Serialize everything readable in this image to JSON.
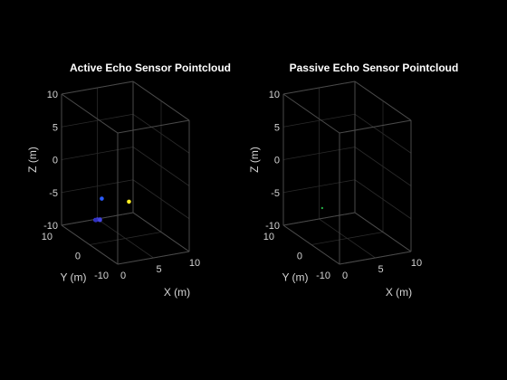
{
  "chart_data": [
    {
      "type": "scatter3d",
      "title": "Active Echo Sensor Pointcloud",
      "xlabel": "X (m)",
      "ylabel": "Y (m)",
      "zlabel": "Z (m)",
      "xlim": [
        0,
        10
      ],
      "ylim": [
        -10,
        10
      ],
      "zlim": [
        -10,
        10
      ],
      "xticks": [
        "0",
        "5",
        "10"
      ],
      "yticks": [
        "-10",
        "0",
        "10"
      ],
      "zticks": [
        "-10",
        "-5",
        "0",
        "5",
        "10"
      ],
      "grid": true,
      "points": [
        {
          "x": 1.7,
          "y": 0,
          "z": -3.3,
          "color": "#2a5cff"
        },
        {
          "x": 5.5,
          "y": 0,
          "z": -4.5,
          "color": "#ffee22"
        },
        {
          "x": 2.4,
          "y": 4.1,
          "z": -7.9,
          "color": "#3a3ad8"
        },
        {
          "x": 2.5,
          "y": 3.6,
          "z": -7.7,
          "color": "#4040dd"
        },
        {
          "x": 2.7,
          "y": 3.2,
          "z": -7.6,
          "color": "#3838cc"
        },
        {
          "x": 2.9,
          "y": 3.7,
          "z": -7.9,
          "color": "#4545e0"
        },
        {
          "x": 2.2,
          "y": 3.4,
          "z": -7.7,
          "color": "#3030c0"
        }
      ]
    },
    {
      "type": "scatter3d",
      "title": "Passive Echo Sensor Pointcloud",
      "xlabel": "X (m)",
      "ylabel": "Y (m)",
      "zlabel": "Z (m)",
      "xlim": [
        0,
        10
      ],
      "ylim": [
        -10,
        10
      ],
      "zlim": [
        -10,
        10
      ],
      "xticks": [
        "0",
        "5",
        "10"
      ],
      "yticks": [
        "-10",
        "0",
        "10"
      ],
      "zticks": [
        "-10",
        "-5",
        "0",
        "5",
        "10"
      ],
      "grid": true,
      "points": [
        {
          "x": 1.5,
          "y": 0,
          "z": -4.7,
          "color": "#22aa44"
        }
      ]
    }
  ]
}
